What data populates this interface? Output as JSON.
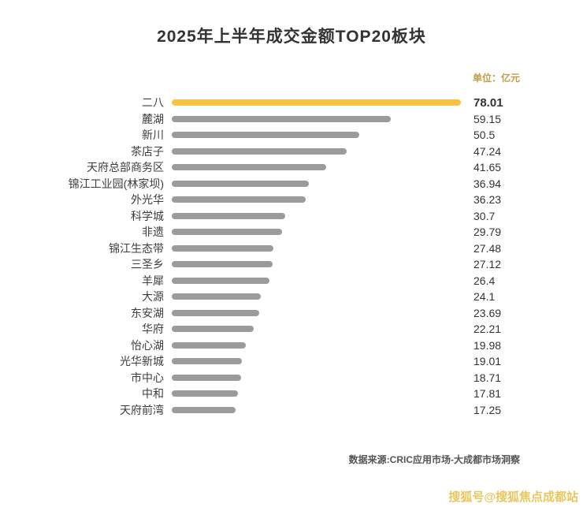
{
  "title": "2025年上半年成交金额TOP20板块",
  "unit_label": "单位：亿元",
  "source": "数据来源:CRIC应用市场-大成都市场洞察",
  "watermark": "搜狐号@搜狐焦点成都站",
  "colors": {
    "highlight": "#f6c344",
    "bar": "#9b9b9b",
    "unit": "#bf9d45",
    "watermark": "#eac65f"
  },
  "chart_data": {
    "type": "bar",
    "orientation": "horizontal",
    "title": "2025年上半年成交金额TOP20板块",
    "unit": "亿元",
    "xlim": [
      0,
      78.01
    ],
    "grid": false,
    "legend": false,
    "highlight_index": 0,
    "categories": [
      "二八",
      "麓湖",
      "新川",
      "茶店子",
      "天府总部商务区",
      "锦江工业园(林家坝)",
      "外光华",
      "科学城",
      "非遗",
      "锦江生态带",
      "三圣乡",
      "羊犀",
      "大源",
      "东安湖",
      "华府",
      "怡心湖",
      "光华新城",
      "市中心",
      "中和",
      "天府前湾"
    ],
    "values": [
      78.01,
      59.15,
      50.5,
      47.24,
      41.65,
      36.94,
      36.23,
      30.7,
      29.79,
      27.48,
      27.12,
      26.4,
      24.1,
      23.69,
      22.21,
      19.98,
      19.01,
      18.71,
      17.81,
      17.25
    ],
    "value_labels": [
      "78.01",
      "59.15",
      "50.5",
      "47.24",
      "41.65",
      "36.94",
      "36.23",
      "30.7",
      "29.79",
      "27.48",
      "27.12",
      "26.4",
      "24.1",
      "23.69",
      "22.21",
      "19.98",
      "19.01",
      "18.71",
      "17.81",
      "17.25"
    ]
  }
}
